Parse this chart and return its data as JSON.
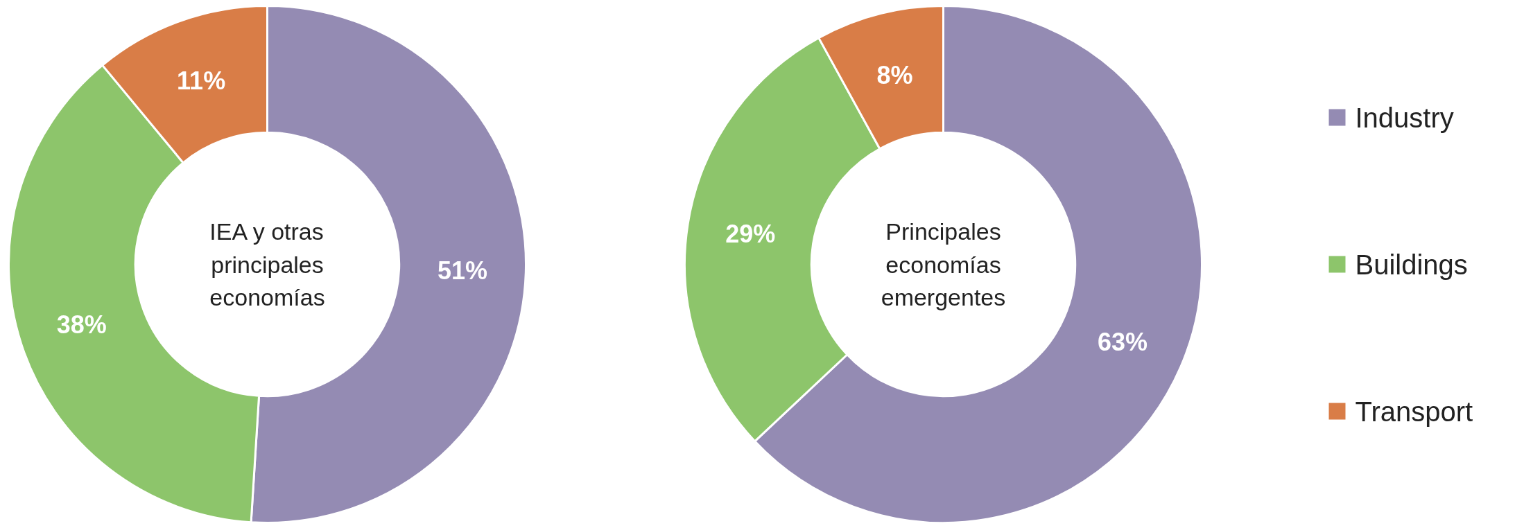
{
  "chart_data": [
    {
      "type": "donut",
      "title": "IEA y otras\nprincipales\neconomías",
      "categories": [
        "Industry",
        "Buildings",
        "Transport"
      ],
      "values": [
        51,
        38,
        11
      ],
      "colors": [
        "#948bb3",
        "#8dc56b",
        "#d97d47"
      ],
      "value_labels": [
        "51%",
        "38%",
        "11%"
      ],
      "legend": "right"
    },
    {
      "type": "donut",
      "title": "Principales\neconomías\nemergentes",
      "categories": [
        null,
        null,
        null
      ],
      "values": [
        63,
        29,
        8
      ],
      "colors": [
        "#948bb3",
        "#8dc56b",
        "#d97d47"
      ],
      "value_labels": [
        "63%",
        "29%",
        "8%"
      ]
    }
  ]
}
